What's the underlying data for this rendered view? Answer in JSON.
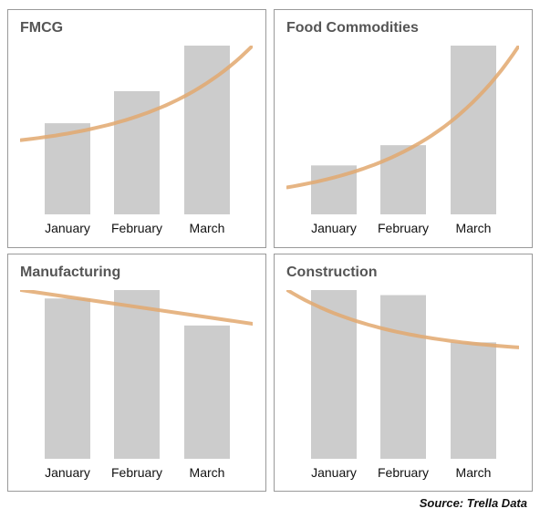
{
  "source": "Source: Trella Data",
  "colors": {
    "bar": "#cccccc",
    "trend": "#e2a86e",
    "border": "#9a9a9a",
    "title": "#555555"
  },
  "chart_data": [
    {
      "type": "bar",
      "title": "FMCG",
      "categories": [
        "January",
        "February",
        "March"
      ],
      "values": [
        54,
        73,
        100
      ],
      "ylim": [
        0,
        100
      ],
      "trend": {
        "type": "curve",
        "y_left": 44,
        "y_right": 100
      },
      "grid": false,
      "legend": "none"
    },
    {
      "type": "bar",
      "title": "Food Commodities",
      "categories": [
        "January",
        "February",
        "March"
      ],
      "values": [
        29,
        41,
        100
      ],
      "ylim": [
        0,
        100
      ],
      "trend": {
        "type": "curve",
        "y_left": 16,
        "y_right": 100
      },
      "grid": false,
      "legend": "none"
    },
    {
      "type": "bar",
      "title": "Manufacturing",
      "categories": [
        "January",
        "February",
        "March"
      ],
      "values": [
        95,
        100,
        79
      ],
      "ylim": [
        0,
        100
      ],
      "trend": {
        "type": "line",
        "y_left": 100,
        "y_right": 80
      },
      "grid": false,
      "legend": "none"
    },
    {
      "type": "bar",
      "title": "Construction",
      "categories": [
        "January",
        "February",
        "March"
      ],
      "values": [
        100,
        97,
        69
      ],
      "ylim": [
        0,
        100
      ],
      "trend": {
        "type": "curve",
        "y_left": 100,
        "y_right": 66
      },
      "grid": false,
      "legend": "none"
    }
  ]
}
